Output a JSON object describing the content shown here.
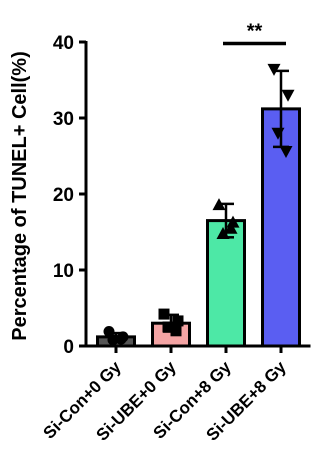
{
  "chart_data": {
    "type": "bar",
    "ylabel": "Percentage of TUNEL+ Cell(%)",
    "xlabel": "",
    "ylim": [
      0,
      40
    ],
    "yticks": [
      0,
      10,
      20,
      30,
      40
    ],
    "grid": false,
    "categories": [
      "Si-Con+0 Gy",
      "Si-UBE+0 Gy",
      "Si-Con+8 Gy",
      "Si-UBE+8 Gy"
    ],
    "values": [
      1.2,
      3.0,
      16.5,
      31.2
    ],
    "errors": [
      0.5,
      1.1,
      2.2,
      5.0
    ],
    "colors": [
      "#555555",
      "#f4a4a4",
      "#4de8a6",
      "#5a5ef2"
    ],
    "markers": [
      "circle",
      "square",
      "triangle-up",
      "triangle-down"
    ],
    "points": [
      [
        1.9,
        1.2,
        0.8,
        0.9
      ],
      [
        4.2,
        3.3,
        2.5,
        2.0
      ],
      [
        18.6,
        16.3,
        14.8,
        15.5
      ],
      [
        36.4,
        33.0,
        28.0,
        25.6
      ]
    ],
    "significance": {
      "from": 2,
      "to": 3,
      "y": 39.8,
      "label": "**"
    }
  }
}
